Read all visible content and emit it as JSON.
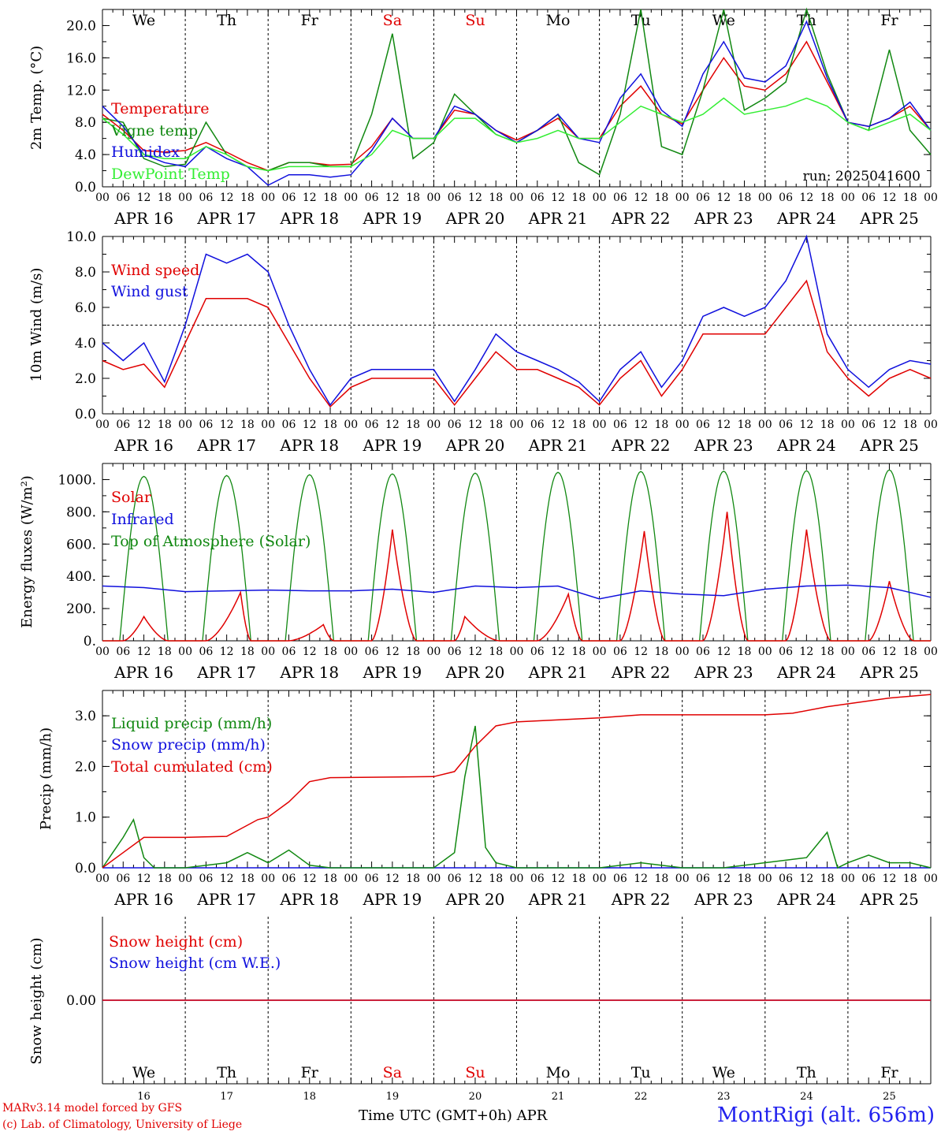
{
  "run_label": "run: 2025041600",
  "x_axis_title": "Time UTC (GMT+0h)",
  "x_axis_month": "APR",
  "station_label": "MontRigi (alt. 656m)",
  "credit_line1": "MARv3.14 model forced by GFS",
  "credit_line2": "(c) Lab. of Climatology, University of Liege",
  "colors": {
    "red": "#e00000",
    "green": "#118811",
    "blue": "#1010dd",
    "lightgreen": "#33ee33",
    "weekend": "#e00000"
  },
  "day_names": [
    "We",
    "Th",
    "Fr",
    "Sa",
    "Su",
    "Mo",
    "Tu",
    "We",
    "Th",
    "Fr"
  ],
  "weekend_flags": [
    false,
    false,
    false,
    true,
    true,
    false,
    false,
    false,
    false,
    false
  ],
  "day_numbers": [
    "16",
    "17",
    "18",
    "19",
    "20",
    "21",
    "22",
    "23",
    "24",
    "25"
  ],
  "date_labels": [
    "APR 16",
    "APR 17",
    "APR 18",
    "APR 19",
    "APR 20",
    "APR 21",
    "APR 22",
    "APR 23",
    "APR 24",
    "APR 25"
  ],
  "hour_ticks": [
    "00",
    "06",
    "12",
    "18"
  ],
  "chart_data": [
    {
      "type": "line",
      "ylabel": "2m Temp. (°C)",
      "ylim": [
        0,
        22
      ],
      "yticks": [
        "0.0",
        "4.0",
        "8.0",
        "12.0",
        "16.0",
        "20.0"
      ],
      "x_unit": "hours from APR 16 00 UTC",
      "series": [
        {
          "name": "Temperature",
          "color": "#e00000",
          "x": [
            0,
            6,
            12,
            18,
            24,
            30,
            36,
            42,
            48,
            54,
            60,
            66,
            72,
            78,
            84,
            90,
            96,
            102,
            108,
            114,
            120,
            126,
            132,
            138,
            144,
            150,
            156,
            162,
            168,
            174,
            180,
            186,
            192,
            198,
            204,
            210,
            216,
            222,
            228,
            234,
            240
          ],
          "y": [
            9.0,
            7.0,
            4.5,
            4.3,
            4.5,
            5.5,
            4.3,
            3.0,
            2.0,
            3.0,
            3.0,
            2.7,
            2.8,
            5.0,
            8.5,
            6.0,
            6.0,
            9.5,
            9.0,
            7.0,
            5.8,
            7.0,
            8.5,
            6.0,
            6.0,
            10.0,
            12.5,
            9.0,
            7.8,
            12.0,
            16.0,
            12.5,
            12.0,
            14.0,
            18.0,
            13.0,
            8.0,
            7.5,
            8.5,
            10.0,
            7.0
          ]
        },
        {
          "name": "Vigne temp",
          "color": "#118811",
          "x": [
            0,
            6,
            12,
            18,
            24,
            30,
            36,
            42,
            48,
            54,
            60,
            66,
            72,
            78,
            84,
            90,
            96,
            102,
            108,
            114,
            120,
            126,
            132,
            138,
            144,
            150,
            156,
            162,
            168,
            174,
            180,
            186,
            192,
            198,
            204,
            210,
            216,
            222,
            228,
            234,
            240
          ],
          "y": [
            8.5,
            8.0,
            3.5,
            2.5,
            2.8,
            8.0,
            4.0,
            2.5,
            2.0,
            3.0,
            3.0,
            2.5,
            2.5,
            9.0,
            19.0,
            3.5,
            5.5,
            11.5,
            9.0,
            6.5,
            5.5,
            7.0,
            9.0,
            3.0,
            1.5,
            9.0,
            22.0,
            5.0,
            4.0,
            12.0,
            22.0,
            9.5,
            11.0,
            13.0,
            22.0,
            14.0,
            8.0,
            7.0,
            17.0,
            7.0,
            4.0
          ]
        },
        {
          "name": "Humidex",
          "color": "#1010dd",
          "x": [
            0,
            6,
            12,
            18,
            24,
            30,
            36,
            42,
            48,
            54,
            60,
            66,
            72,
            78,
            84,
            90,
            96,
            102,
            108,
            114,
            120,
            126,
            132,
            138,
            144,
            150,
            156,
            162,
            168,
            174,
            180,
            186,
            192,
            198,
            204,
            210,
            216,
            222,
            228,
            234,
            240
          ],
          "y": [
            10.0,
            7.5,
            4.0,
            3.0,
            2.5,
            5.0,
            3.5,
            2.5,
            0.2,
            1.5,
            1.5,
            1.2,
            1.5,
            4.5,
            8.5,
            6.0,
            6.0,
            10.0,
            9.0,
            7.0,
            5.5,
            7.0,
            9.0,
            6.0,
            5.5,
            11.0,
            14.0,
            9.5,
            7.5,
            14.0,
            18.0,
            13.5,
            13.0,
            15.0,
            20.5,
            13.5,
            8.0,
            7.5,
            8.5,
            10.5,
            7.0
          ]
        },
        {
          "name": "DewPoint Temp",
          "color": "#33ee33",
          "x": [
            0,
            6,
            12,
            18,
            24,
            30,
            36,
            42,
            48,
            54,
            60,
            66,
            72,
            78,
            84,
            90,
            96,
            102,
            108,
            114,
            120,
            126,
            132,
            138,
            144,
            150,
            156,
            162,
            168,
            174,
            180,
            186,
            192,
            198,
            204,
            210,
            216,
            222,
            228,
            234,
            240
          ],
          "y": [
            8.5,
            6.5,
            4.0,
            3.5,
            3.5,
            5.0,
            4.0,
            2.5,
            2.0,
            2.5,
            2.5,
            2.5,
            2.5,
            4.0,
            7.0,
            6.0,
            6.0,
            8.5,
            8.5,
            6.5,
            5.5,
            6.0,
            7.0,
            6.0,
            6.0,
            8.0,
            10.0,
            9.0,
            8.0,
            9.0,
            11.0,
            9.0,
            9.5,
            10.0,
            11.0,
            10.0,
            8.0,
            7.0,
            8.0,
            9.0,
            7.0
          ]
        }
      ]
    },
    {
      "type": "line",
      "ylabel": "10m Wind (m/s)",
      "ylim": [
        0,
        10
      ],
      "yticks": [
        "0.0",
        "2.0",
        "4.0",
        "6.0",
        "8.0",
        "10.0"
      ],
      "reference_line": 5.0,
      "x_unit": "hours from APR 16 00 UTC",
      "series": [
        {
          "name": "Wind speed",
          "color": "#e00000",
          "x": [
            0,
            6,
            12,
            18,
            24,
            30,
            36,
            42,
            48,
            54,
            60,
            66,
            72,
            78,
            84,
            90,
            96,
            102,
            108,
            114,
            120,
            126,
            132,
            138,
            144,
            150,
            156,
            162,
            168,
            174,
            180,
            186,
            192,
            198,
            204,
            210,
            216,
            222,
            228,
            234,
            240
          ],
          "y": [
            3.0,
            2.5,
            2.8,
            1.5,
            4.0,
            6.5,
            6.5,
            6.5,
            6.0,
            4.0,
            2.0,
            0.4,
            1.5,
            2.0,
            2.0,
            2.0,
            2.0,
            0.5,
            2.0,
            3.5,
            2.5,
            2.5,
            2.0,
            1.5,
            0.5,
            2.0,
            3.0,
            1.0,
            2.5,
            4.5,
            4.5,
            4.5,
            4.5,
            6.0,
            7.5,
            3.5,
            2.0,
            1.0,
            2.0,
            2.5,
            2.0
          ]
        },
        {
          "name": "Wind gust",
          "color": "#1010dd",
          "x": [
            0,
            6,
            12,
            18,
            24,
            30,
            36,
            42,
            48,
            54,
            60,
            66,
            72,
            78,
            84,
            90,
            96,
            102,
            108,
            114,
            120,
            126,
            132,
            138,
            144,
            150,
            156,
            162,
            168,
            174,
            180,
            186,
            192,
            198,
            204,
            210,
            216,
            222,
            228,
            234,
            240
          ],
          "y": [
            4.0,
            3.0,
            4.0,
            1.8,
            5.0,
            9.0,
            8.5,
            9.0,
            8.0,
            5.0,
            2.5,
            0.5,
            2.0,
            2.5,
            2.5,
            2.5,
            2.5,
            0.7,
            2.5,
            4.5,
            3.5,
            3.0,
            2.5,
            1.8,
            0.7,
            2.5,
            3.5,
            1.5,
            3.0,
            5.5,
            6.0,
            5.5,
            6.0,
            7.5,
            10.0,
            4.5,
            2.5,
            1.5,
            2.5,
            3.0,
            2.8
          ]
        }
      ]
    },
    {
      "type": "line",
      "ylabel": "Energy fluxes (W/m²)",
      "ylim": [
        0,
        1100
      ],
      "yticks": [
        "0.",
        "200.",
        "400.",
        "600.",
        "800.",
        "1000."
      ],
      "x_unit": "hours from APR 16 00 UTC",
      "series": [
        {
          "name": "Solar",
          "color": "#e00000",
          "day_peak_wm2": [
            150,
            300,
            100,
            690,
            150,
            290,
            680,
            800,
            690,
            370
          ],
          "day_peak_hour": [
            12,
            16,
            16,
            12,
            9,
            15,
            13,
            13,
            12,
            12
          ]
        },
        {
          "name": "Infrared",
          "color": "#1010dd",
          "x": [
            0,
            12,
            24,
            36,
            48,
            60,
            72,
            84,
            96,
            108,
            120,
            132,
            144,
            156,
            168,
            180,
            192,
            204,
            216,
            228,
            240
          ],
          "y": [
            340,
            330,
            305,
            310,
            315,
            310,
            310,
            320,
            300,
            340,
            330,
            340,
            260,
            310,
            290,
            280,
            320,
            340,
            345,
            330,
            270
          ]
        },
        {
          "name": "Top of Atmosphere (Solar)",
          "color": "#118811",
          "day_peak_wm2": [
            1020,
            1025,
            1030,
            1035,
            1040,
            1045,
            1050,
            1052,
            1055,
            1060
          ],
          "daylight_hours": [
            5,
            19
          ]
        }
      ]
    },
    {
      "type": "line",
      "ylabel": "Precip (mm/h)",
      "ylim": [
        0,
        3.5
      ],
      "yticks": [
        "0.0",
        "1.0",
        "2.0",
        "3.0"
      ],
      "x_unit": "hours from APR 16 00 UTC",
      "series": [
        {
          "name": "Liquid precip (mm/h)",
          "color": "#118811",
          "x": [
            0,
            3,
            6,
            9,
            12,
            15,
            24,
            36,
            42,
            48,
            54,
            60,
            66,
            96,
            102,
            105,
            108,
            111,
            114,
            120,
            144,
            156,
            168,
            180,
            204,
            210,
            213,
            216,
            222,
            228,
            234,
            240
          ],
          "y": [
            0.0,
            0.3,
            0.6,
            0.95,
            0.2,
            0.0,
            0.0,
            0.1,
            0.3,
            0.1,
            0.35,
            0.05,
            0.0,
            0.0,
            0.3,
            1.8,
            2.8,
            0.4,
            0.1,
            0.0,
            0.0,
            0.1,
            0.0,
            0.0,
            0.2,
            0.7,
            0.0,
            0.1,
            0.25,
            0.1,
            0.1,
            0.0
          ]
        },
        {
          "name": "Snow precip (mm/h)",
          "color": "#1010dd",
          "x": [
            0,
            240
          ],
          "y": [
            0.0,
            0.0
          ]
        },
        {
          "name": "Total cumulated (cm)",
          "color": "#e00000",
          "x": [
            0,
            6,
            12,
            24,
            36,
            45,
            48,
            54,
            60,
            66,
            96,
            102,
            108,
            114,
            120,
            144,
            156,
            192,
            200,
            210,
            228,
            240
          ],
          "y": [
            0.0,
            0.3,
            0.6,
            0.6,
            0.62,
            0.95,
            1.0,
            1.3,
            1.7,
            1.78,
            1.8,
            1.9,
            2.4,
            2.8,
            2.88,
            2.96,
            3.02,
            3.02,
            3.05,
            3.18,
            3.35,
            3.42
          ]
        }
      ]
    },
    {
      "type": "line",
      "ylabel": "Snow height (cm)",
      "yticks": [
        "0.00"
      ],
      "x_unit": "hours from APR 16 00 UTC",
      "series": [
        {
          "name": "Snow height (cm)",
          "color": "#e00000",
          "x": [
            0,
            240
          ],
          "y": [
            0.0,
            0.0
          ]
        },
        {
          "name": "Snow height (cm W.E.)",
          "color": "#1010dd",
          "x": [
            0,
            240
          ],
          "y": [
            0.0,
            0.0
          ]
        }
      ]
    }
  ]
}
